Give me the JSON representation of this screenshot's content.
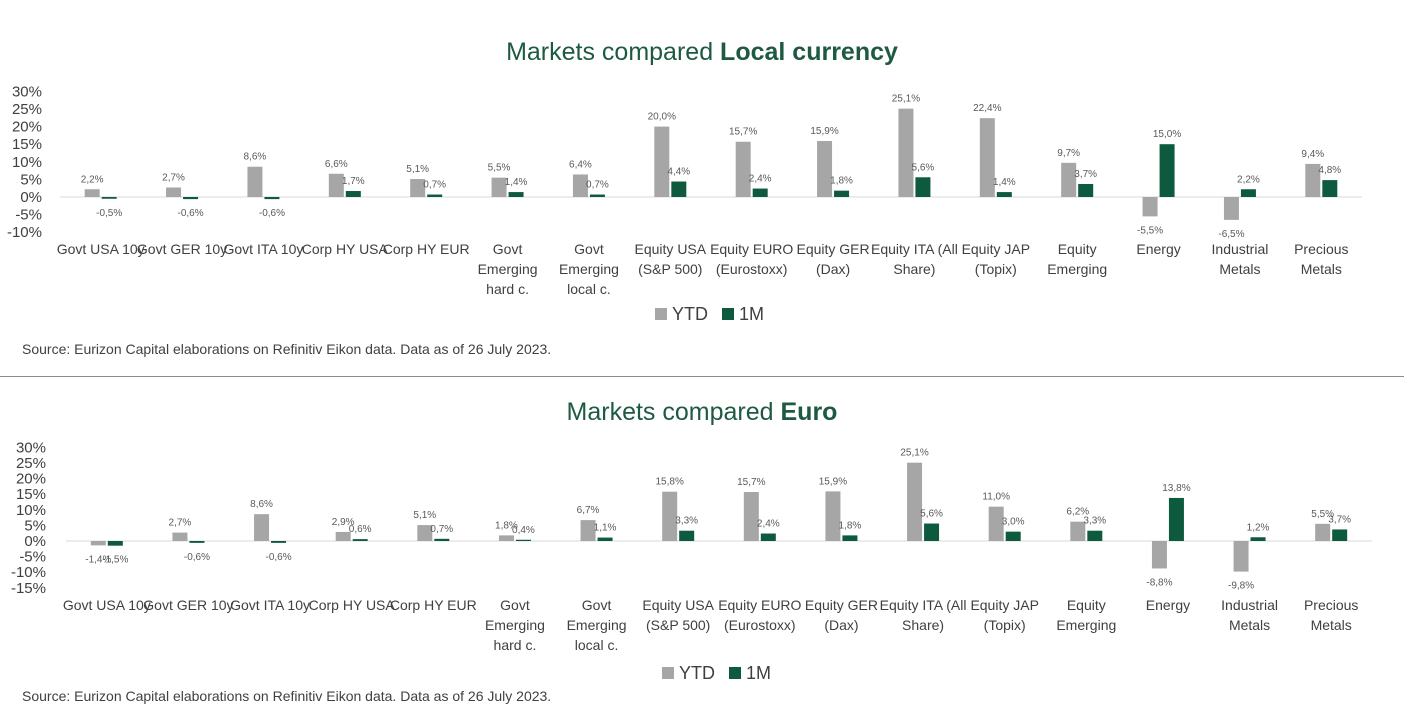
{
  "colors": {
    "title": "#1e5a41",
    "ytd": "#a6a6a6",
    "m1": "#0e5a3e",
    "text": "#404040",
    "axis": "#d9d9d9"
  },
  "panels": [
    {
      "title_prefix": "Markets compared ",
      "title_bold": "Local currency",
      "source": "Source: Eurizon Capital elaborations on Refinitiv Eikon data. Data as of 26 July 2023."
    },
    {
      "title_prefix": "Markets compared ",
      "title_bold": "Euro",
      "source": "Source: Eurizon Capital elaborations on Refinitiv Eikon data. Data as of 26 July 2023."
    }
  ],
  "chart_data": [
    {
      "type": "bar",
      "title": "Markets compared Local currency",
      "categories": [
        "Govt USA 10y",
        "Govt GER 10y",
        "Govt ITA 10y",
        "Corp HY USA",
        "Corp HY EUR",
        "Govt Emerging hard c.",
        "Govt Emerging local c.",
        "Equity USA (S&P 500)",
        "Equity EURO (Eurostoxx)",
        "Equity GER (Dax)",
        "Equity ITA (All Share)",
        "Equity JAP (Topix)",
        "Equity Emerging",
        "Energy",
        "Industrial Metals",
        "Precious Metals"
      ],
      "category_lines": [
        [
          "Govt USA 10y"
        ],
        [
          "Govt GER 10y"
        ],
        [
          "Govt ITA 10y"
        ],
        [
          "Corp HY USA"
        ],
        [
          "Corp HY EUR"
        ],
        [
          "Govt",
          "Emerging",
          "hard c."
        ],
        [
          "Govt",
          "Emerging",
          "local c."
        ],
        [
          "Equity USA",
          "(S&P 500)"
        ],
        [
          "Equity EURO",
          "(Eurostoxx)"
        ],
        [
          "Equity GER",
          "(Dax)"
        ],
        [
          "Equity ITA (All",
          "Share)"
        ],
        [
          "Equity JAP",
          "(Topix)"
        ],
        [
          "Equity",
          "Emerging"
        ],
        [
          "Energy"
        ],
        [
          "Industrial",
          "Metals"
        ],
        [
          "Precious",
          "Metals"
        ]
      ],
      "series": [
        {
          "name": "YTD",
          "values": [
            2.2,
            2.7,
            8.6,
            6.6,
            5.1,
            5.5,
            6.4,
            20.0,
            15.7,
            15.9,
            25.1,
            22.4,
            9.7,
            -5.5,
            -6.5,
            9.4
          ],
          "labels": [
            "2,2%",
            "2,7%",
            "8,6%",
            "6,6%",
            "5,1%",
            "5,5%",
            "6,4%",
            "20,0%",
            "15,7%",
            "15,9%",
            "25,1%",
            "22,4%",
            "9,7%",
            "-5,5%",
            "-6,5%",
            "9,4%"
          ]
        },
        {
          "name": "1M",
          "values": [
            -0.5,
            -0.6,
            -0.6,
            1.7,
            0.7,
            1.4,
            0.7,
            4.4,
            2.4,
            1.8,
            5.6,
            1.4,
            3.7,
            15.0,
            2.2,
            4.8
          ],
          "labels": [
            "-0,5%",
            "-0,6%",
            "-0,6%",
            "1,7%",
            "0,7%",
            "1,4%",
            "0,7%",
            "4,4%",
            "2,4%",
            "1,8%",
            "5,6%",
            "1,4%",
            "3,7%",
            "15,0%",
            "2,2%",
            "4,8%"
          ]
        }
      ],
      "yticks": [
        30,
        25,
        20,
        15,
        10,
        5,
        0,
        -5,
        -10
      ],
      "ytick_labels": [
        "30%",
        "25%",
        "20%",
        "15%",
        "10%",
        "5%",
        "0%",
        "-5%",
        "-10%"
      ],
      "ylim": [
        -10,
        30
      ],
      "legend": "bottom-center",
      "grid": false
    },
    {
      "type": "bar",
      "title": "Markets compared Euro",
      "categories": [
        "Govt USA 10y",
        "Govt GER 10y",
        "Govt ITA 10y",
        "Corp HY USA",
        "Corp HY EUR",
        "Govt Emerging hard c.",
        "Govt Emerging local c.",
        "Equity USA (S&P 500)",
        "Equity EURO (Eurostoxx)",
        "Equity GER (Dax)",
        "Equity ITA (All Share)",
        "Equity JAP (Topix)",
        "Equity Emerging",
        "Energy",
        "Industrial Metals",
        "Precious Metals"
      ],
      "category_lines": [
        [
          "Govt USA 10y"
        ],
        [
          "Govt GER 10y"
        ],
        [
          "Govt ITA 10y"
        ],
        [
          "Corp HY USA"
        ],
        [
          "Corp HY EUR"
        ],
        [
          "Govt",
          "Emerging",
          "hard c."
        ],
        [
          "Govt",
          "Emerging",
          "local c."
        ],
        [
          "Equity USA",
          "(S&P 500)"
        ],
        [
          "Equity EURO",
          "(Eurostoxx)"
        ],
        [
          "Equity GER",
          "(Dax)"
        ],
        [
          "Equity ITA (All",
          "Share)"
        ],
        [
          "Equity JAP",
          "(Topix)"
        ],
        [
          "Equity",
          "Emerging"
        ],
        [
          "Energy"
        ],
        [
          "Industrial",
          "Metals"
        ],
        [
          "Precious",
          "Metals"
        ]
      ],
      "series": [
        {
          "name": "YTD",
          "values": [
            -1.4,
            2.7,
            8.6,
            2.9,
            5.1,
            1.8,
            6.7,
            15.8,
            15.7,
            15.9,
            25.1,
            11.0,
            6.2,
            -8.8,
            -9.8,
            5.5
          ],
          "labels": [
            "-1,4%",
            "2,7%",
            "8,6%",
            "2,9%",
            "5,1%",
            "1,8%",
            "6,7%",
            "15,8%",
            "15,7%",
            "15,9%",
            "25,1%",
            "11,0%",
            "6,2%",
            "-8,8%",
            "-9,8%",
            "5,5%"
          ]
        },
        {
          "name": "1M",
          "values": [
            -1.5,
            -0.6,
            -0.6,
            0.6,
            0.7,
            0.4,
            1.1,
            3.3,
            2.4,
            1.8,
            5.6,
            3.0,
            3.3,
            13.8,
            1.2,
            3.7
          ],
          "labels": [
            "-1,5%",
            "-0,6%",
            "-0,6%",
            "0,6%",
            "0,7%",
            "0,4%",
            "1,1%",
            "3,3%",
            "2,4%",
            "1,8%",
            "5,6%",
            "3,0%",
            "3,3%",
            "13,8%",
            "1,2%",
            "3,7%"
          ]
        }
      ],
      "yticks": [
        30,
        25,
        20,
        15,
        10,
        5,
        0,
        -5,
        -10,
        -15
      ],
      "ytick_labels": [
        "30%",
        "25%",
        "20%",
        "15%",
        "10%",
        "5%",
        "0%",
        "-5%",
        "-10%",
        "-15%"
      ],
      "ylim": [
        -15,
        30
      ],
      "legend": "bottom-center",
      "grid": false
    }
  ]
}
